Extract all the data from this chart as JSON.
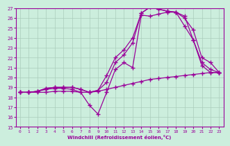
{
  "xlabel": "Windchill (Refroidissement éolien,°C)",
  "xlim": [
    -0.5,
    23.5
  ],
  "ylim": [
    15,
    27
  ],
  "xticks": [
    0,
    1,
    2,
    3,
    4,
    5,
    6,
    7,
    8,
    9,
    10,
    11,
    12,
    13,
    14,
    15,
    16,
    17,
    18,
    19,
    20,
    21,
    22,
    23
  ],
  "yticks": [
    15,
    16,
    17,
    18,
    19,
    20,
    21,
    22,
    23,
    24,
    25,
    26,
    27
  ],
  "bg_color": "#cceedd",
  "grid_color": "#aaccbb",
  "line_color": "#990099",
  "line1_x": [
    0,
    1,
    2,
    3,
    4,
    5,
    6,
    7,
    8,
    9,
    10,
    11,
    12,
    13,
    14,
    15,
    16,
    17,
    18,
    19,
    20,
    21,
    22,
    23
  ],
  "line1_y": [
    18.5,
    18.5,
    18.5,
    18.5,
    18.6,
    18.6,
    18.6,
    18.5,
    18.5,
    18.6,
    18.8,
    19.0,
    19.2,
    19.4,
    19.6,
    19.8,
    19.9,
    20.0,
    20.1,
    20.2,
    20.3,
    20.4,
    20.5,
    20.5
  ],
  "line2_x": [
    0,
    1,
    2,
    3,
    4,
    5,
    6,
    7,
    8,
    9,
    10,
    11,
    12,
    13,
    14,
    15,
    16,
    17,
    18,
    19,
    20,
    21,
    22,
    23
  ],
  "line2_y": [
    18.5,
    18.5,
    18.6,
    18.8,
    18.9,
    18.9,
    18.8,
    18.5,
    17.2,
    16.3,
    18.5,
    20.8,
    21.5,
    21.0,
    26.3,
    26.2,
    26.4,
    26.6,
    26.6,
    26.2,
    23.8,
    21.2,
    20.5,
    20.5
  ],
  "line3_x": [
    0,
    1,
    2,
    3,
    4,
    5,
    6,
    7,
    8,
    9,
    10,
    11,
    12,
    13,
    14,
    15,
    16,
    17,
    18,
    19,
    20,
    21,
    22,
    23
  ],
  "line3_y": [
    18.5,
    18.5,
    18.6,
    18.9,
    19.0,
    19.0,
    19.0,
    18.8,
    18.5,
    18.7,
    19.5,
    21.5,
    22.3,
    23.5,
    26.5,
    27.1,
    26.9,
    26.7,
    26.6,
    25.2,
    23.8,
    21.5,
    20.8,
    20.5
  ],
  "line4_x": [
    0,
    1,
    2,
    3,
    4,
    5,
    6,
    7,
    8,
    9,
    10,
    11,
    12,
    13,
    14,
    15,
    16,
    17,
    18,
    19,
    20,
    21,
    22,
    23
  ],
  "line4_y": [
    18.5,
    18.5,
    18.6,
    18.9,
    19.0,
    19.0,
    19.0,
    18.8,
    18.5,
    18.7,
    20.2,
    22.0,
    22.8,
    24.0,
    26.5,
    27.1,
    26.9,
    26.7,
    26.6,
    26.0,
    24.8,
    22.0,
    21.5,
    20.5
  ]
}
